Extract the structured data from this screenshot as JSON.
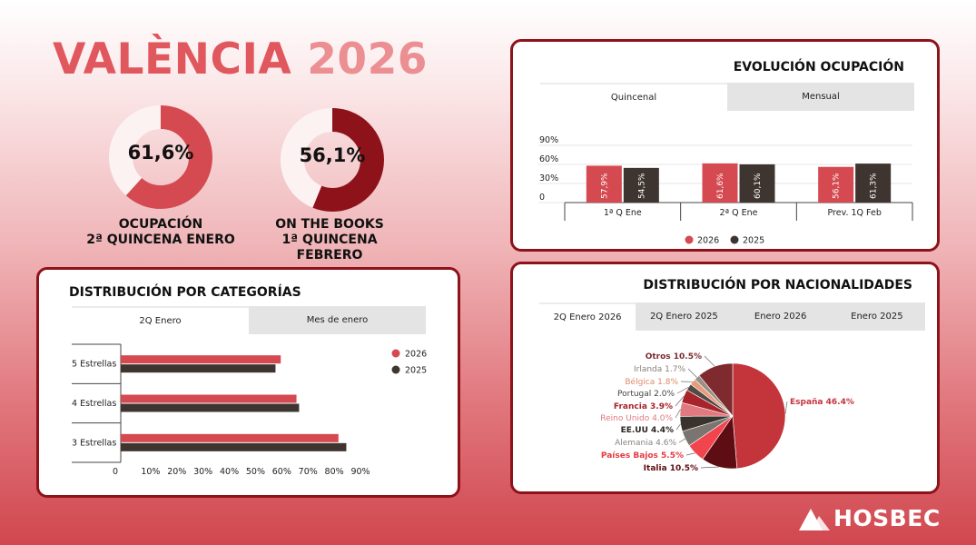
{
  "header": {
    "title_city": "VALÈNCIA",
    "title_year": "2026"
  },
  "kpis": [
    {
      "value_text": "61,6%",
      "value": 61.6,
      "label_line1": "OCUPACIÓN",
      "label_line2": "2ª QUINCENA ENERO",
      "color": "#d44a50"
    },
    {
      "value_text": "56,1%",
      "value": 56.1,
      "label_line1": "ON THE BOOKS",
      "label_line2": "1ª QUINCENA FEBRERO",
      "color": "#8e1219"
    }
  ],
  "evolucion": {
    "title": "EVOLUCIÓN OCUPACIÓN",
    "tabs": [
      "Quincenal",
      "Mensual"
    ],
    "active_tab": 0
  },
  "categorias": {
    "title": "DISTRIBUCIÓN POR CATEGORÍAS",
    "tabs": [
      "2Q Enero",
      "Mes de enero"
    ],
    "active_tab": 0
  },
  "nacionalidades": {
    "title": "DISTRIBUCIÓN POR NACIONALIDADES",
    "tabs": [
      "2Q Enero 2026",
      "2Q Enero 2025",
      "Enero 2026",
      "Enero 2025"
    ],
    "active_tab": 0
  },
  "brand": {
    "name": "HOSBEC"
  },
  "colors": {
    "s2026": "#d44a50",
    "s2025": "#3e3530",
    "border": "#8e1219"
  },
  "chart_data": [
    {
      "type": "bar",
      "categories": [
        "1ª Q Ene",
        "2ª Q Ene",
        "Prev. 1Q Feb"
      ],
      "series": [
        {
          "name": "2026",
          "values": [
            57.9,
            61.6,
            56.1
          ],
          "labels": [
            "57,9%",
            "61,6%",
            "56,1%"
          ]
        },
        {
          "name": "2025",
          "values": [
            54.5,
            60.1,
            61.3
          ],
          "labels": [
            "54,5%",
            "60,1%",
            "61,3%"
          ]
        }
      ],
      "yticks": [
        "0",
        "30%",
        "60%",
        "90%"
      ],
      "ylim": [
        0,
        90
      ],
      "legend": "bottom"
    },
    {
      "type": "bar",
      "orientation": "horizontal",
      "categories": [
        "5 Estrellas",
        "4 Estrellas",
        "3 Estrellas"
      ],
      "series": [
        {
          "name": "2026",
          "values": [
            61,
            67,
            83
          ]
        },
        {
          "name": "2025",
          "values": [
            59,
            68,
            86
          ]
        }
      ],
      "xticks": [
        "0",
        "10%",
        "20%",
        "30%",
        "40%",
        "50%",
        "60%",
        "70%",
        "80%",
        "90%"
      ],
      "xlim": [
        0,
        90
      ],
      "legend": "top-right"
    },
    {
      "type": "pie",
      "slices": [
        {
          "label": "España",
          "value": 46.4,
          "text": "España 46.4%",
          "color": "#c4343b"
        },
        {
          "label": "Italia",
          "value": 10.5,
          "text": "Italia 10.5%",
          "color": "#5e0e12"
        },
        {
          "label": "Países Bajos",
          "value": 5.5,
          "text": "Países Bajos 5.5%",
          "color": "#f2444c"
        },
        {
          "label": "Alemania",
          "value": 4.6,
          "text": "Alemania 4.6%",
          "color": "#7a7570"
        },
        {
          "label": "EE.UU",
          "value": 4.4,
          "text": "EE.UU 4.4%",
          "color": "#3a322c"
        },
        {
          "label": "Reino Unido",
          "value": 4.0,
          "text": "Reino Unido 4.0%",
          "color": "#e07a80"
        },
        {
          "label": "Francia",
          "value": 3.9,
          "text": "Francia 3.9%",
          "color": "#a8232a"
        },
        {
          "label": "Portugal",
          "value": 2.0,
          "text": "Portugal 2.0%",
          "color": "#524a45"
        },
        {
          "label": "Bélgica",
          "value": 1.8,
          "text": "Bélgica 1.8%",
          "color": "#e89a7a"
        },
        {
          "label": "Irlanda",
          "value": 1.7,
          "text": "Irlanda 1.7%",
          "color": "#9a9088"
        },
        {
          "label": "Otros",
          "value": 10.5,
          "text": "Otros 10.5%",
          "color": "#7e2a2f"
        }
      ],
      "label_colors": [
        "#c4343b",
        "#5e0e12",
        "#e63a42",
        "#8a847f",
        "#2a2420",
        "#e07a80",
        "#a8232a",
        "#444",
        "#e08a6a",
        "#8a8078",
        "#7e2a2f"
      ]
    }
  ]
}
